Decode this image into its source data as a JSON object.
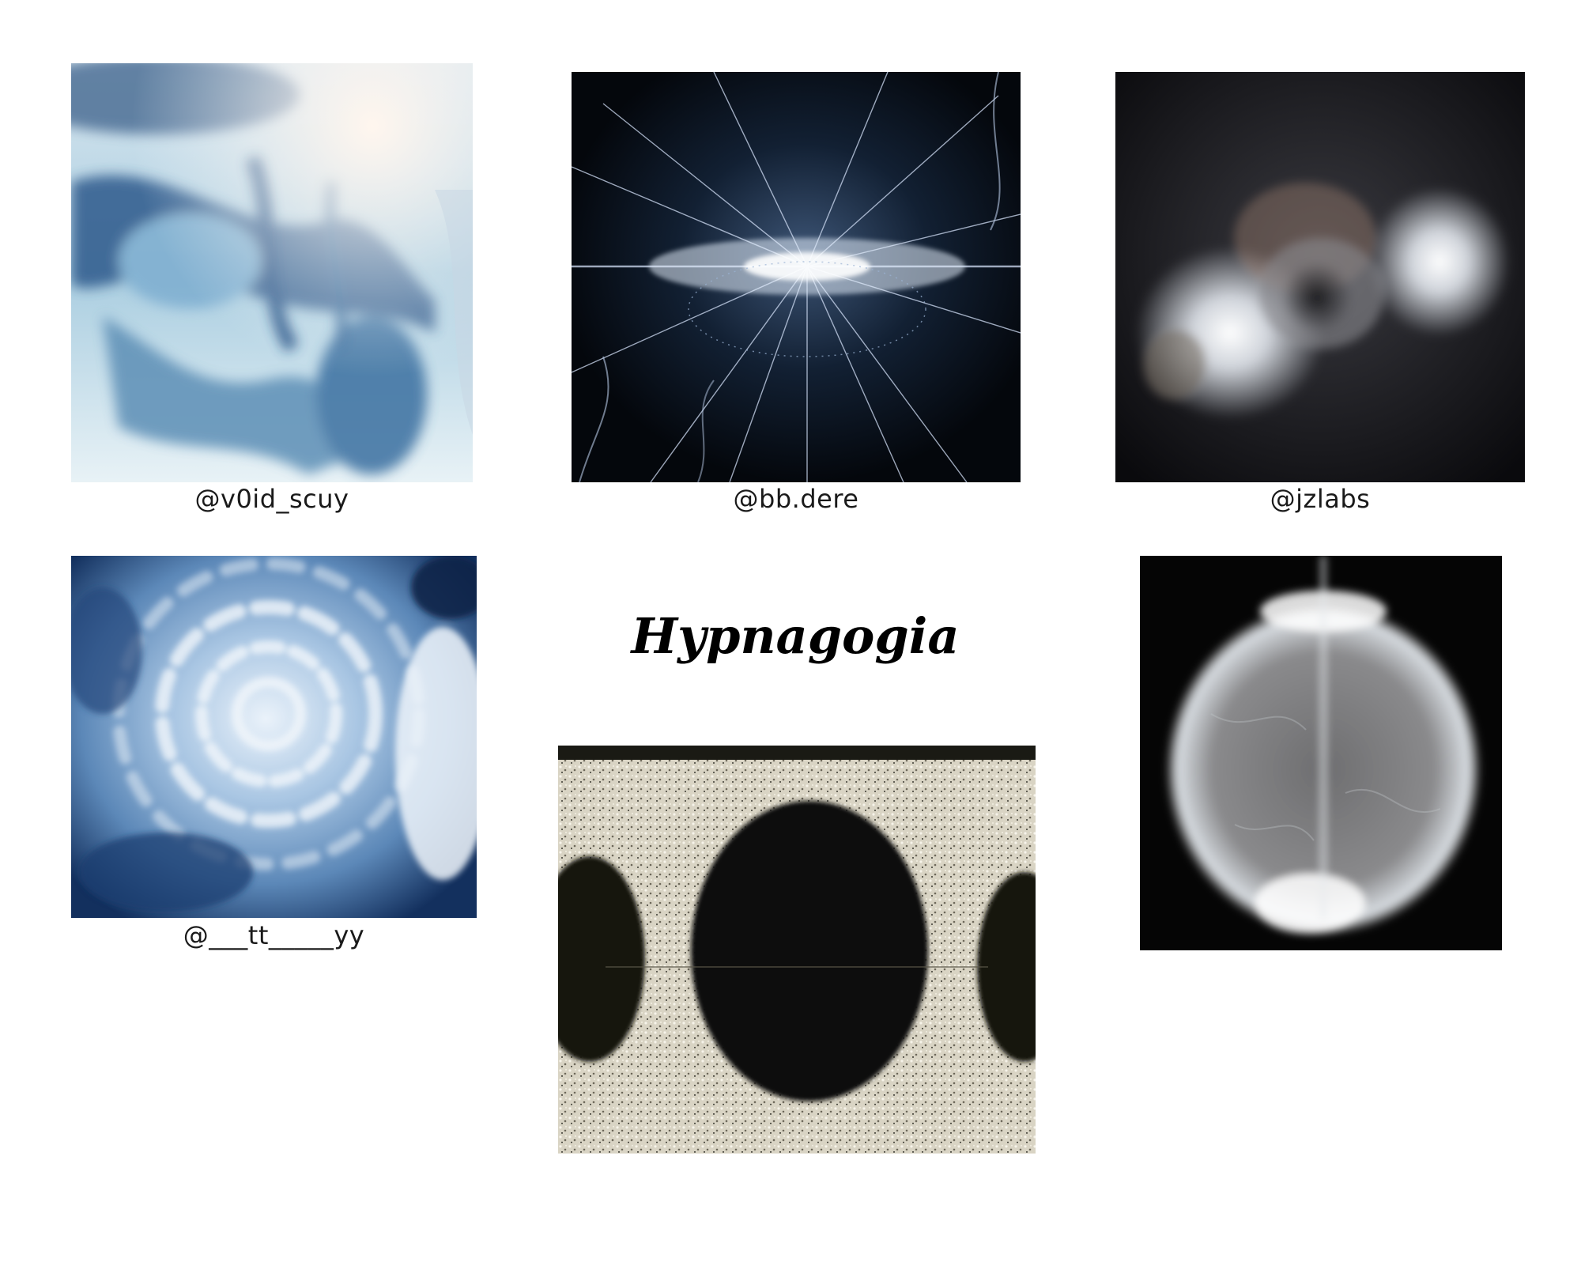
{
  "title": "Hypnagogia",
  "artworks": [
    {
      "credit": "@v0id_scuy",
      "palette": [
        "#f4f0ec",
        "#b9d6e6",
        "#3f6f9c",
        "#1d3f73"
      ]
    },
    {
      "credit": "@bb.dere",
      "palette": [
        "#050a12",
        "#1a2a3c",
        "#c8d8f0",
        "#ffffff"
      ]
    },
    {
      "credit": "@jzlabs",
      "palette": [
        "#0c0c10",
        "#2a2a30",
        "#e8eef6",
        "#ffffff"
      ]
    },
    {
      "credit": "@___tt_____yy",
      "palette": [
        "#0f2a55",
        "#5f8fc0",
        "#c9dcef",
        "#f2f7fc"
      ]
    },
    {
      "credit": "",
      "palette": [
        "#050505",
        "#3a3a3a",
        "#9a9a9a",
        "#ffffff"
      ]
    },
    {
      "credit": "",
      "palette": [
        "#101008",
        "#5a5648",
        "#d8d2c0",
        "#f4f0e6"
      ]
    }
  ]
}
